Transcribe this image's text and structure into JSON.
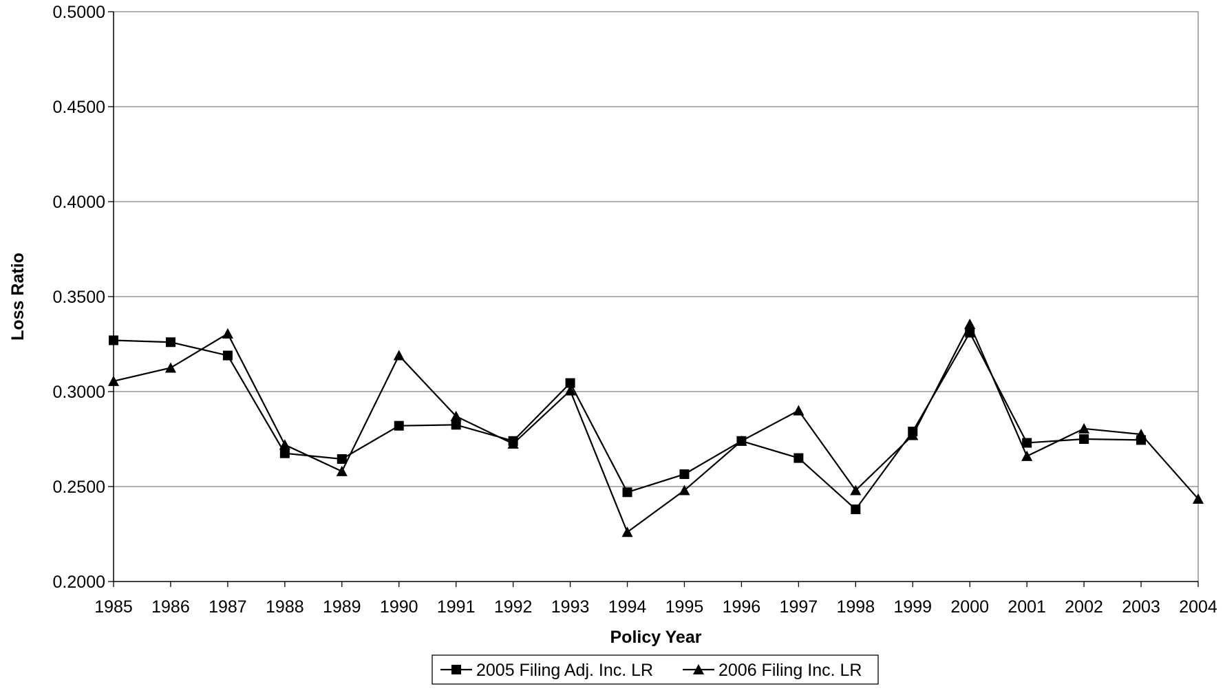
{
  "chart_data": {
    "type": "line",
    "title": "",
    "xlabel": "Policy Year",
    "ylabel": "Loss Ratio",
    "ylim": [
      0.2,
      0.5
    ],
    "ytick_values": [
      0.2,
      0.25,
      0.3,
      0.35,
      0.4,
      0.45,
      0.5
    ],
    "ytick_labels": [
      "0.2000",
      "0.2500",
      "0.3000",
      "0.3500",
      "0.4000",
      "0.4500",
      "0.5000"
    ],
    "categories": [
      "1985",
      "1986",
      "1987",
      "1988",
      "1989",
      "1990",
      "1991",
      "1992",
      "1993",
      "1994",
      "1995",
      "1996",
      "1997",
      "1998",
      "1999",
      "2000",
      "2001",
      "2002",
      "2003",
      "2004"
    ],
    "grid": true,
    "legend_position": "bottom",
    "series": [
      {
        "name": "2005 Filing Adj. Inc. LR",
        "marker": "square",
        "color": "#000000",
        "values": [
          0.327,
          0.326,
          0.319,
          0.2675,
          0.2645,
          0.282,
          0.2825,
          0.274,
          0.3045,
          0.247,
          0.2565,
          0.274,
          0.265,
          0.238,
          0.279,
          0.331,
          0.273,
          0.275,
          0.2745,
          null
        ]
      },
      {
        "name": "2006 Filing Inc. LR",
        "marker": "triangle",
        "color": "#000000",
        "values": [
          0.3055,
          0.3125,
          0.3305,
          0.272,
          0.258,
          0.319,
          0.287,
          0.2725,
          0.3005,
          0.226,
          0.248,
          0.274,
          0.29,
          0.248,
          0.277,
          0.3355,
          0.266,
          0.2805,
          0.2775,
          0.2435
        ]
      }
    ]
  }
}
